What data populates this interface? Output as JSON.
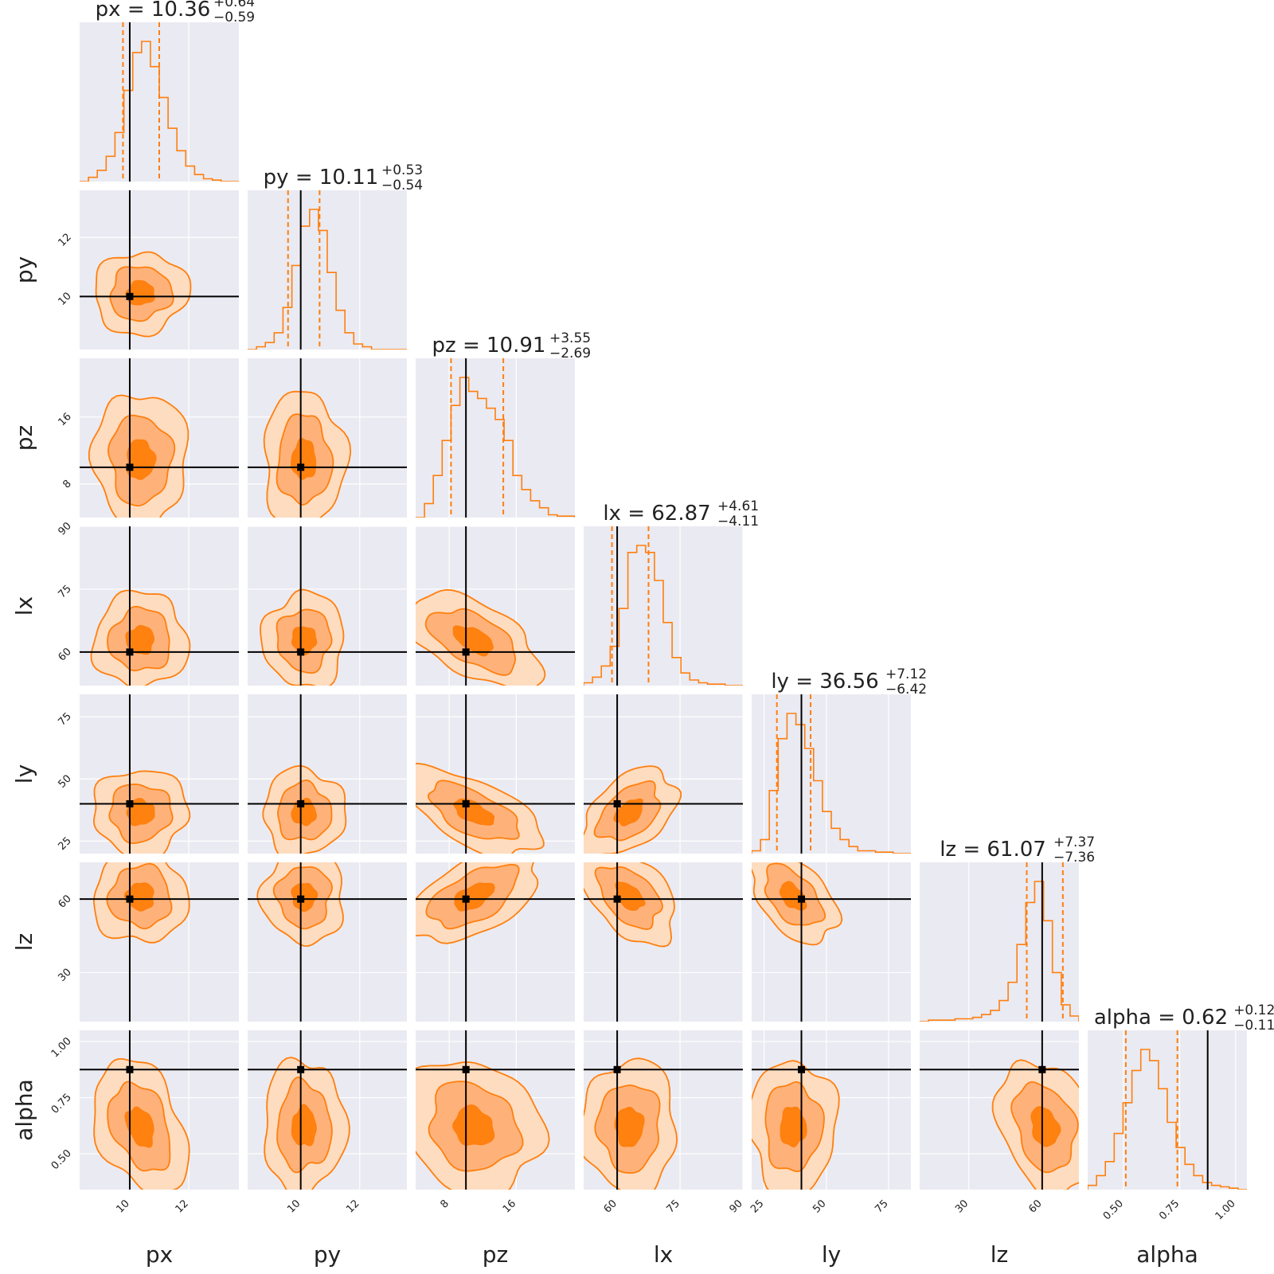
{
  "chart_data": {
    "type": "corner",
    "parameters": [
      {
        "name": "px",
        "label": "px",
        "title": {
          "base": "px = 10.36",
          "plus": "+0.64",
          "minus": "−0.59"
        },
        "range": [
          8.3,
          13.7
        ],
        "ticks": [
          10,
          12
        ],
        "tick_labels": [
          "10",
          "12"
        ],
        "truth": 10.0,
        "median": 10.36,
        "q16": 9.77,
        "q84": 11.0
      },
      {
        "name": "py",
        "label": "py",
        "title": {
          "base": "py = 10.11",
          "plus": "+0.53",
          "minus": "−0.54"
        },
        "range": [
          8.2,
          13.6
        ],
        "ticks": [
          10,
          12
        ],
        "tick_labels": [
          "10",
          "12"
        ],
        "truth": 10.0,
        "median": 10.11,
        "q16": 9.57,
        "q84": 10.64
      },
      {
        "name": "pz",
        "label": "pz",
        "title": {
          "base": "pz = 10.91",
          "plus": "+3.55",
          "minus": "−2.69"
        },
        "range": [
          4.0,
          23.0
        ],
        "ticks": [
          8,
          16
        ],
        "tick_labels": [
          "8",
          "16"
        ],
        "truth": 10.0,
        "median": 10.91,
        "q16": 8.22,
        "q84": 14.46
      },
      {
        "name": "lx",
        "label": "lx",
        "title": {
          "base": "lx = 62.87",
          "plus": "+4.61",
          "minus": "−4.11"
        },
        "range": [
          52.0,
          90.0
        ],
        "ticks": [
          60,
          75,
          90
        ],
        "tick_labels": [
          "60",
          "75",
          "90"
        ],
        "truth": 60.0,
        "median": 62.87,
        "q16": 58.76,
        "q84": 67.48
      },
      {
        "name": "ly",
        "label": "ly",
        "title": {
          "base": "ly = 36.56",
          "plus": "+7.12",
          "minus": "−6.42"
        },
        "range": [
          20.0,
          84.0
        ],
        "ticks": [
          25,
          50,
          75
        ],
        "tick_labels": [
          "25",
          "50",
          "75"
        ],
        "truth": 40.0,
        "median": 36.56,
        "q16": 30.14,
        "q84": 43.68
      },
      {
        "name": "lz",
        "label": "lz",
        "title": {
          "base": "lz = 61.07",
          "plus": "+7.37",
          "minus": "−7.36"
        },
        "range": [
          10.0,
          75.0
        ],
        "ticks": [
          30,
          60
        ],
        "tick_labels": [
          "30",
          "60"
        ],
        "truth": 60.0,
        "median": 61.07,
        "q16": 53.71,
        "q84": 68.44
      },
      {
        "name": "alpha",
        "label": "alpha",
        "title": {
          "base": "alpha = 0.62",
          "plus": "+0.12",
          "minus": "−0.11"
        },
        "range": [
          0.34,
          1.05
        ],
        "ticks": [
          0.5,
          0.75,
          1.0
        ],
        "tick_labels": [
          "0.50",
          "0.75",
          "1.00"
        ],
        "truth": 0.875,
        "median": 0.62,
        "q16": 0.51,
        "q84": 0.74
      }
    ],
    "histograms": [
      [
        0.0,
        0.03,
        0.08,
        0.18,
        0.35,
        0.65,
        0.92,
        1.0,
        0.82,
        0.6,
        0.38,
        0.22,
        0.11,
        0.05,
        0.02,
        0.01,
        0.0,
        0.0
      ],
      [
        0.0,
        0.02,
        0.05,
        0.12,
        0.3,
        0.6,
        0.88,
        1.0,
        0.85,
        0.55,
        0.28,
        0.12,
        0.04,
        0.02,
        0.0,
        0.0,
        0.0,
        0.0
      ],
      [
        0.0,
        0.1,
        0.3,
        0.55,
        0.8,
        1.0,
        0.9,
        0.85,
        0.78,
        0.7,
        0.55,
        0.3,
        0.2,
        0.12,
        0.07,
        0.02,
        0.01,
        0.01
      ],
      [
        0.02,
        0.06,
        0.14,
        0.28,
        0.55,
        0.95,
        1.0,
        0.95,
        0.75,
        0.45,
        0.2,
        0.09,
        0.04,
        0.02,
        0.01,
        0.01,
        0.0,
        0.0
      ],
      [
        0.02,
        0.1,
        0.45,
        0.82,
        1.0,
        0.92,
        0.75,
        0.52,
        0.3,
        0.18,
        0.1,
        0.05,
        0.02,
        0.02,
        0.01,
        0.01,
        0.0,
        0.0
      ],
      [
        0.0,
        0.01,
        0.01,
        0.01,
        0.02,
        0.02,
        0.03,
        0.05,
        0.08,
        0.15,
        0.28,
        0.55,
        0.85,
        1.0,
        0.72,
        0.35,
        0.12,
        0.04
      ],
      [
        0.03,
        0.1,
        0.2,
        0.4,
        0.62,
        0.85,
        1.0,
        0.92,
        0.72,
        0.48,
        0.3,
        0.18,
        0.1,
        0.05,
        0.03,
        0.02,
        0.01,
        0.0
      ]
    ],
    "rho": {
      "2_0": 0.0,
      "2_1": 0.0,
      "3_0": 0.0,
      "3_1": 0.0,
      "3_2": -0.55,
      "4_0": 0.0,
      "4_1": 0.0,
      "4_2": -0.6,
      "4_3": 0.45,
      "5_0": 0.0,
      "5_1": 0.0,
      "5_2": 0.55,
      "5_3": -0.45,
      "5_4": -0.5,
      "6_0": -0.35,
      "6_1": 0.0,
      "6_2": -0.15,
      "6_3": 0.0,
      "6_4": 0.0,
      "6_5": -0.25,
      "1_0": 0.05
    },
    "colors": {
      "line": "#ff7f0e",
      "level1": "#fedcbf",
      "level2": "#feb27a",
      "level3": "#ff8210",
      "truth": "#000000",
      "panel_bg": "#eaeaf2",
      "grid": "#ffffff"
    }
  }
}
